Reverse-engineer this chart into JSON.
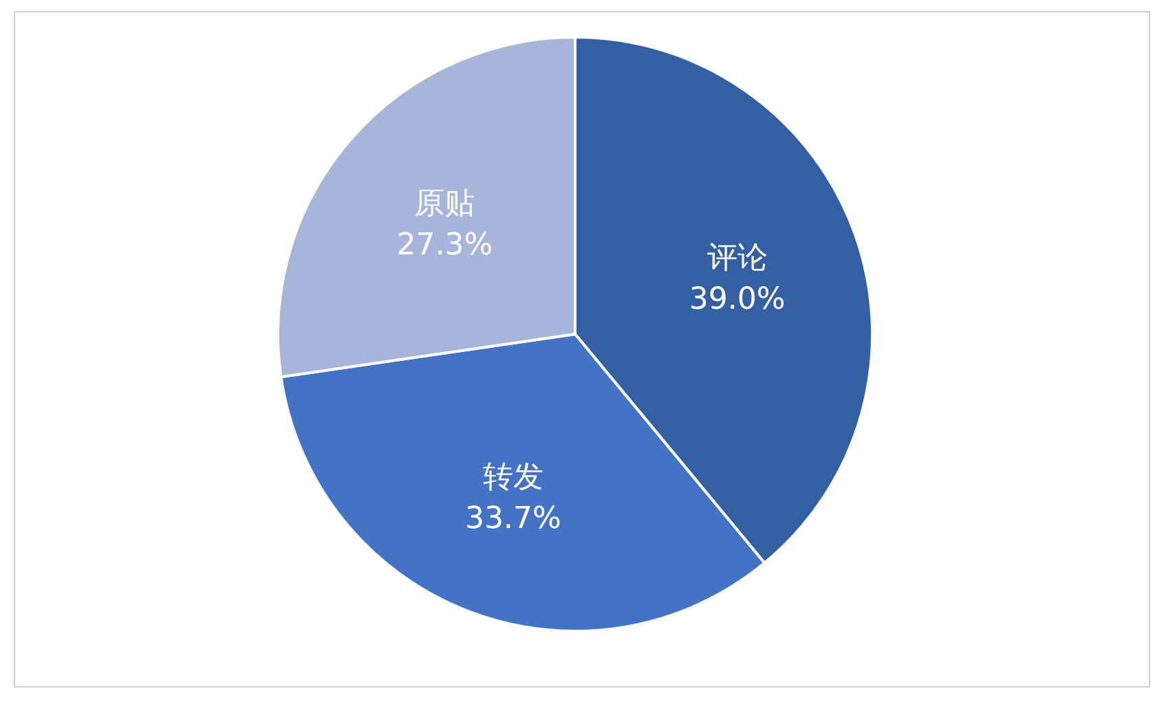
{
  "chart_data": {
    "type": "pie",
    "categories": [
      "评论",
      "转发",
      "原贴"
    ],
    "values": [
      39.0,
      33.7,
      27.3
    ],
    "colors": [
      "#355fa3",
      "#4472c4",
      "#a7b5db"
    ],
    "value_labels": [
      "39.0%",
      "33.7%",
      "27.3%"
    ]
  }
}
